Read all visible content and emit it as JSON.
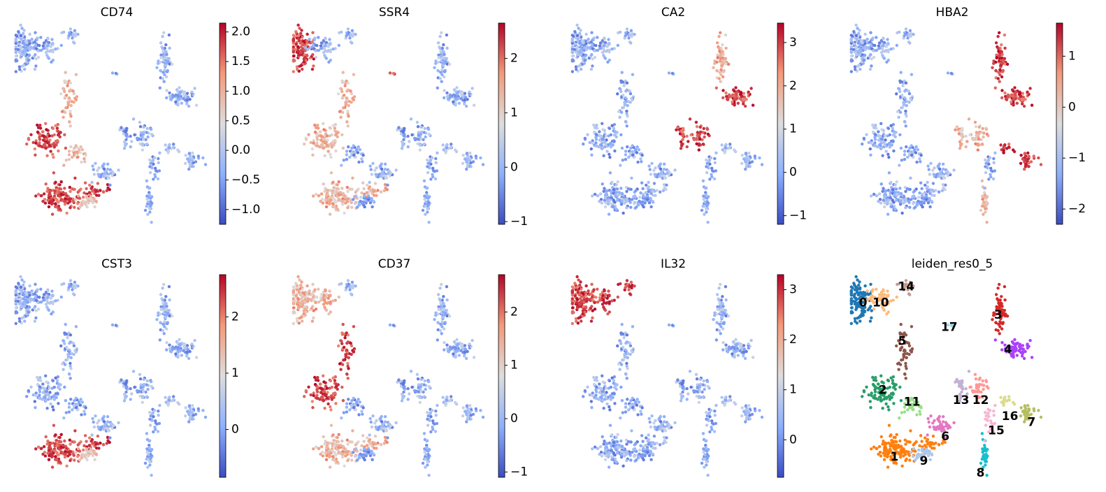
{
  "figure": {
    "colormap": "coolwarm",
    "colormap_stops": [
      "#3b4cc0",
      "#8db0fe",
      "#dddddd",
      "#f49a7b",
      "#b40426"
    ]
  },
  "chart_data": [
    {
      "type": "scatter",
      "title": "CD74",
      "colorbar_ticks": [
        "2.0",
        "1.5",
        "1.0",
        "0.5",
        "0.0",
        "−0.5",
        "−1.0"
      ],
      "colorbar_range": [
        -1.25,
        2.15
      ],
      "hot_clusters": [
        "2",
        "1"
      ],
      "warm_clusters": [
        "11",
        "5",
        "9"
      ]
    },
    {
      "type": "scatter",
      "title": "SSR4",
      "colorbar_ticks": [
        "2",
        "1",
        "0",
        "−1"
      ],
      "colorbar_range": [
        -1.05,
        2.65
      ],
      "hot_clusters": [
        "0",
        "17"
      ],
      "warm_clusters": [
        "1",
        "5",
        "2"
      ]
    },
    {
      "type": "scatter",
      "title": "CA2",
      "colorbar_ticks": [
        "3",
        "2",
        "1",
        "0",
        "−1"
      ],
      "colorbar_range": [
        -1.2,
        3.45
      ],
      "hot_clusters": [
        "12",
        "13",
        "4"
      ],
      "warm_clusters": [
        "3"
      ]
    },
    {
      "type": "scatter",
      "title": "HBA2",
      "colorbar_ticks": [
        "1",
        "0",
        "−1",
        "−2"
      ],
      "colorbar_range": [
        -2.3,
        1.65
      ],
      "hot_clusters": [
        "3",
        "4",
        "7",
        "16"
      ],
      "warm_clusters": [
        "8",
        "13",
        "12"
      ]
    },
    {
      "type": "scatter",
      "title": "CST3",
      "colorbar_ticks": [
        "2",
        "1",
        "0"
      ],
      "colorbar_range": [
        -0.85,
        2.75
      ],
      "hot_clusters": [
        "1"
      ],
      "warm_clusters": [
        "9"
      ]
    },
    {
      "type": "scatter",
      "title": "CD37",
      "colorbar_ticks": [
        "2",
        "1",
        "0",
        "−1"
      ],
      "colorbar_range": [
        -1.1,
        2.7
      ],
      "hot_clusters": [
        "5",
        "2"
      ],
      "warm_clusters": [
        "0",
        "10",
        "1"
      ]
    },
    {
      "type": "scatter",
      "title": "IL32",
      "colorbar_ticks": [
        "3",
        "2",
        "1",
        "0"
      ],
      "colorbar_range": [
        -0.75,
        3.3
      ],
      "hot_clusters": [
        "0",
        "10",
        "14"
      ],
      "warm_clusters": []
    },
    {
      "type": "scatter",
      "title": "leiden_res0_5",
      "categories": [
        "0",
        "1",
        "2",
        "3",
        "4",
        "5",
        "6",
        "7",
        "8",
        "9",
        "10",
        "11",
        "12",
        "13",
        "14",
        "15",
        "16",
        "17"
      ],
      "colors": [
        "#1f77b4",
        "#ff7f0e",
        "#279e68",
        "#d62728",
        "#aa40fc",
        "#8c564b",
        "#e377c2",
        "#b5bd61",
        "#17becf",
        "#aec7e8",
        "#ffbb78",
        "#98df8a",
        "#ff9896",
        "#c5b0d5",
        "#c49c94",
        "#f7b6d2",
        "#dbdb8d",
        "#9edae5"
      ]
    }
  ]
}
